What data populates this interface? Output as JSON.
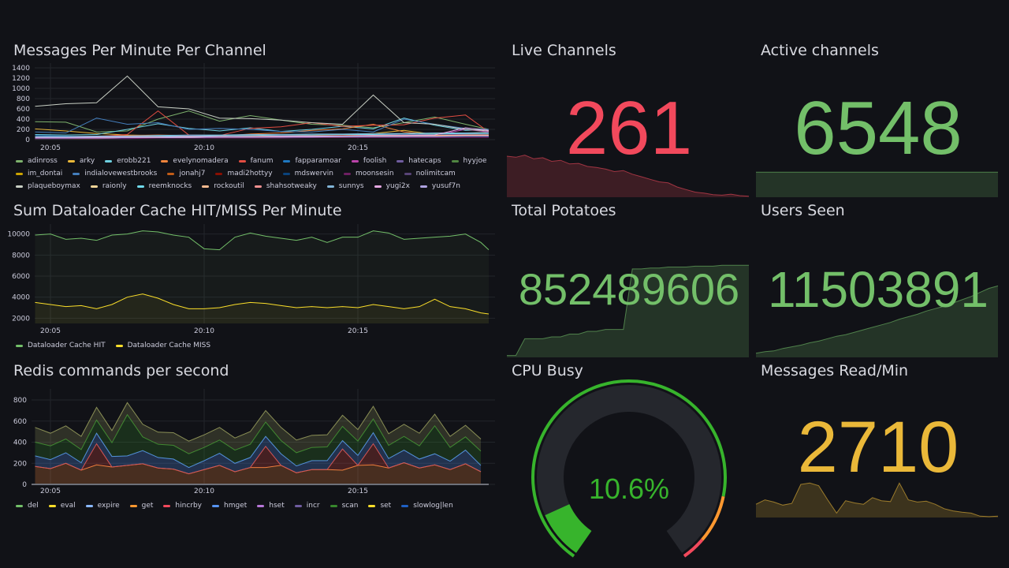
{
  "panels": {
    "messages": {
      "title": "Messages Per Minute Per Channel"
    },
    "dataloader": {
      "title": "Sum Dataloader Cache HIT/MISS Per Minute"
    },
    "redis": {
      "title": "Redis commands per second"
    },
    "live": {
      "title": "Live Channels",
      "value": "261",
      "color": "#f2495c",
      "spark": [
        80,
        78,
        82,
        75,
        77,
        70,
        72,
        65,
        66,
        60,
        58,
        55,
        50,
        52,
        45,
        40,
        35,
        30,
        28,
        20,
        15,
        10,
        8,
        5,
        4,
        6,
        3,
        2
      ]
    },
    "active": {
      "title": "Active channels",
      "value": "6548",
      "color": "#73bf69",
      "spark": [
        99,
        99,
        99,
        99,
        99,
        99,
        99,
        99,
        99,
        99,
        99,
        99,
        99,
        99,
        99,
        99,
        99,
        99,
        99,
        99,
        99,
        99,
        99,
        99,
        99,
        99,
        99,
        99
      ]
    },
    "potatoes": {
      "title": "Total Potatoes",
      "value": "852489606",
      "color": "#73bf69",
      "spark": [
        2,
        2,
        20,
        20,
        20,
        22,
        22,
        25,
        25,
        28,
        28,
        30,
        30,
        30,
        95,
        95,
        96,
        96,
        97,
        97,
        97,
        98,
        98,
        98,
        99,
        99,
        99,
        99
      ]
    },
    "users": {
      "title": "Users Seen",
      "value": "11503891",
      "color": "#73bf69",
      "spark": [
        5,
        7,
        8,
        11,
        13,
        15,
        18,
        20,
        23,
        26,
        28,
        31,
        34,
        37,
        40,
        43,
        47,
        50,
        53,
        57,
        60,
        63,
        67,
        71,
        75,
        80,
        85,
        88
      ]
    },
    "cpu": {
      "title": "CPU Busy",
      "value": "10.6%",
      "percent": 10.6,
      "color": "#37b42c"
    },
    "msgread": {
      "title": "Messages Read/Min",
      "value": "2710",
      "color": "#eab839",
      "spark": [
        30,
        40,
        35,
        28,
        32,
        75,
        78,
        72,
        40,
        10,
        38,
        33,
        30,
        45,
        38,
        36,
        78,
        40,
        35,
        37,
        30,
        20,
        15,
        12,
        10,
        3,
        2,
        3
      ]
    }
  },
  "chart_data": [
    {
      "type": "line",
      "id": "messages",
      "title": "Messages Per Minute Per Channel",
      "ylim": [
        0,
        1400
      ],
      "yticks": [
        0,
        200,
        400,
        600,
        800,
        1000,
        1200,
        1400
      ],
      "xticks": [
        {
          "m": 5,
          "label": "20:05"
        },
        {
          "m": 10,
          "label": "20:10"
        },
        {
          "m": 15,
          "label": "20:15"
        }
      ],
      "x": [
        4.5,
        5.5,
        6.5,
        7.5,
        8.5,
        9.5,
        10.5,
        11.5,
        12.5,
        13.5,
        14.5,
        15.5,
        16.5,
        17.5,
        18.5,
        19.5
      ],
      "series": [
        {
          "name": "adinross",
          "color": "#7eb26d",
          "values": [
            350,
            340,
            150,
            170,
            400,
            560,
            360,
            470,
            380,
            300,
            280,
            230,
            330,
            440,
            300,
            200
          ]
        },
        {
          "name": "arky",
          "color": "#eab839",
          "values": [
            210,
            170,
            120,
            90,
            80,
            70,
            60,
            60,
            60,
            70,
            90,
            120,
            180,
            100,
            120,
            150
          ]
        },
        {
          "name": "erobb221",
          "color": "#6ed0e0",
          "values": [
            100,
            90,
            100,
            200,
            310,
            220,
            170,
            230,
            160,
            200,
            260,
            210,
            420,
            280,
            180,
            200
          ]
        },
        {
          "name": "evelynomadera",
          "color": "#ef843c",
          "values": [
            60,
            60,
            70,
            80,
            90,
            80,
            70,
            110,
            130,
            180,
            210,
            300,
            150,
            90,
            100,
            120
          ]
        },
        {
          "name": "fanum",
          "color": "#e24d42",
          "values": [
            60,
            60,
            60,
            100,
            560,
            90,
            80,
            220,
            250,
            330,
            260,
            280,
            290,
            420,
            480,
            150
          ]
        },
        {
          "name": "fapparamoar",
          "color": "#1f78c1",
          "values": [
            80,
            70,
            60,
            60,
            70,
            60,
            60,
            60,
            60,
            60,
            60,
            60,
            70,
            70,
            80,
            90
          ]
        },
        {
          "name": "foolish",
          "color": "#ba43a9",
          "values": [
            40,
            40,
            40,
            50,
            50,
            50,
            50,
            60,
            60,
            60,
            70,
            80,
            80,
            80,
            200,
            150
          ]
        },
        {
          "name": "hatecaps",
          "color": "#705da0",
          "values": [
            50,
            50,
            60,
            60,
            70,
            60,
            60,
            70,
            70,
            70,
            80,
            90,
            90,
            90,
            100,
            100
          ]
        },
        {
          "name": "hyyjoe",
          "color": "#508642",
          "values": [
            30,
            30,
            30,
            40,
            40,
            50,
            50,
            60,
            60,
            70,
            70,
            80,
            100,
            120,
            110,
            100
          ]
        },
        {
          "name": "im_dontai",
          "color": "#cca300",
          "values": [
            20,
            20,
            20,
            30,
            30,
            30,
            30,
            40,
            40,
            40,
            40,
            50,
            50,
            50,
            60,
            60
          ]
        },
        {
          "name": "indialovewestbrooks",
          "color": "#447ebc",
          "values": [
            150,
            130,
            420,
            300,
            330,
            200,
            220,
            200,
            160,
            150,
            200,
            150,
            400,
            300,
            220,
            200
          ]
        },
        {
          "name": "jonahj7",
          "color": "#c15c17",
          "values": [
            40,
            40,
            50,
            60,
            60,
            60,
            60,
            70,
            70,
            80,
            90,
            100,
            90,
            90,
            80,
            80
          ]
        },
        {
          "name": "madi2hottyy",
          "color": "#890f02",
          "values": [
            30,
            30,
            30,
            30,
            40,
            40,
            40,
            50,
            50,
            50,
            50,
            60,
            60,
            60,
            60,
            60
          ]
        },
        {
          "name": "mdswervin",
          "color": "#0a437c",
          "values": [
            20,
            20,
            30,
            30,
            30,
            30,
            40,
            40,
            40,
            40,
            50,
            50,
            50,
            50,
            50,
            50
          ]
        },
        {
          "name": "moonsesin",
          "color": "#6d1f62",
          "values": [
            20,
            20,
            20,
            20,
            30,
            30,
            30,
            30,
            30,
            40,
            40,
            40,
            40,
            40,
            40,
            40
          ]
        },
        {
          "name": "nolimitcam",
          "color": "#584477",
          "values": [
            60,
            60,
            70,
            70,
            80,
            80,
            80,
            90,
            90,
            90,
            100,
            100,
            100,
            100,
            110,
            110
          ]
        },
        {
          "name": "plaqueboymax",
          "color": "#c8cfc4",
          "values": [
            650,
            700,
            720,
            1240,
            640,
            600,
            420,
            410,
            380,
            330,
            300,
            870,
            330,
            300,
            200,
            170
          ]
        },
        {
          "name": "raionly",
          "color": "#f4d598",
          "values": [
            30,
            30,
            30,
            40,
            40,
            40,
            50,
            50,
            50,
            60,
            60,
            60,
            60,
            70,
            70,
            70
          ]
        },
        {
          "name": "reemknocks",
          "color": "#70dbed",
          "values": [
            50,
            50,
            60,
            60,
            70,
            70,
            80,
            80,
            90,
            90,
            100,
            100,
            110,
            110,
            120,
            120
          ]
        },
        {
          "name": "rockoutil",
          "color": "#f9ba8f",
          "values": [
            40,
            40,
            40,
            50,
            50,
            60,
            60,
            60,
            70,
            70,
            70,
            80,
            80,
            80,
            90,
            90
          ]
        },
        {
          "name": "shahsotweaky",
          "color": "#f29191",
          "values": [
            30,
            30,
            40,
            40,
            40,
            50,
            50,
            50,
            60,
            60,
            60,
            70,
            70,
            70,
            80,
            80
          ]
        },
        {
          "name": "sunnys",
          "color": "#82b5d8",
          "values": [
            60,
            60,
            70,
            70,
            80,
            90,
            90,
            100,
            100,
            110,
            110,
            120,
            120,
            130,
            130,
            140
          ]
        },
        {
          "name": "yugi2x",
          "color": "#e5a8e2",
          "values": [
            40,
            40,
            50,
            50,
            50,
            60,
            60,
            60,
            70,
            70,
            70,
            80,
            80,
            90,
            230,
            180
          ]
        },
        {
          "name": "yusuf7n",
          "color": "#aea2e0",
          "values": [
            30,
            30,
            30,
            40,
            40,
            40,
            50,
            50,
            50,
            50,
            60,
            60,
            60,
            60,
            70,
            70
          ]
        }
      ]
    },
    {
      "type": "line",
      "id": "dataloader",
      "title": "Sum Dataloader Cache HIT/MISS Per Minute",
      "ylim": [
        1500,
        10500
      ],
      "yticks": [
        2000,
        4000,
        6000,
        8000,
        10000
      ],
      "xticks": [
        {
          "m": 5,
          "label": "20:05"
        },
        {
          "m": 10,
          "label": "20:10"
        },
        {
          "m": 15,
          "label": "20:15"
        }
      ],
      "x": [
        4.5,
        5,
        5.5,
        6,
        6.5,
        7,
        7.5,
        8,
        8.5,
        9,
        9.5,
        10,
        10.5,
        11,
        11.5,
        12,
        12.5,
        13,
        13.5,
        14,
        14.5,
        15,
        15.5,
        16,
        16.5,
        17,
        17.5,
        18,
        18.5,
        19,
        19.5
      ],
      "series": [
        {
          "name": "Dataloader Cache HIT",
          "color": "#73bf69",
          "values": [
            9900,
            10000,
            9500,
            9600,
            9400,
            9900,
            10000,
            10300,
            10200,
            9900,
            9700,
            8600,
            8500,
            9700,
            10100,
            9800,
            9600,
            9400,
            9700,
            9200,
            9700,
            9700,
            10300,
            10100,
            9500,
            9600,
            9700,
            9800,
            10000,
            9200,
            8500
          ]
        },
        {
          "name": "Dataloader Cache MISS",
          "color": "#fade2a",
          "values": [
            3500,
            3300,
            3100,
            3200,
            2900,
            3300,
            4000,
            4300,
            3900,
            3300,
            2900,
            2900,
            3000,
            3300,
            3500,
            3400,
            3200,
            3000,
            3100,
            3000,
            3100,
            3000,
            3300,
            3100,
            2900,
            3100,
            3800,
            3100,
            2900,
            2500,
            2400
          ]
        }
      ]
    },
    {
      "type": "area",
      "stacked": true,
      "id": "redis",
      "title": "Redis commands per second",
      "ylim": [
        0,
        860
      ],
      "yticks": [
        0,
        200,
        400,
        600,
        800
      ],
      "xticks": [
        {
          "m": 5,
          "label": "20:05"
        },
        {
          "m": 10,
          "label": "20:10"
        },
        {
          "m": 15,
          "label": "20:15"
        }
      ],
      "x_start": 4.5,
      "x_step": 0.5,
      "series": [
        {
          "name": "get",
          "color": "#ef843c",
          "values": [
            170,
            150,
            200,
            135,
            185,
            165,
            180,
            195,
            155,
            145,
            100,
            140,
            180,
            120,
            160,
            160,
            180,
            110,
            140,
            140,
            135,
            180,
            185,
            155,
            205,
            155,
            185,
            140,
            195,
            120
          ]
        },
        {
          "name": "hincrby",
          "color": "#e24d42",
          "values": [
            0,
            0,
            0,
            0,
            200,
            0,
            0,
            0,
            0,
            0,
            0,
            0,
            0,
            0,
            0,
            200,
            0,
            0,
            0,
            0,
            200,
            0,
            200,
            0,
            0,
            0,
            0,
            0,
            0,
            0
          ]
        },
        {
          "name": "hmget",
          "color": "#5794f2",
          "values": [
            100,
            85,
            100,
            70,
            100,
            100,
            90,
            125,
            100,
            95,
            60,
            85,
            115,
            80,
            95,
            95,
            110,
            65,
            85,
            85,
            80,
            95,
            105,
            90,
            120,
            85,
            105,
            80,
            130,
            60
          ]
        },
        {
          "name": "scan",
          "color": "#37872d",
          "values": [
            130,
            130,
            130,
            125,
            125,
            130,
            390,
            130,
            125,
            130,
            130,
            125,
            125,
            125,
            125,
            135,
            125,
            125,
            125,
            130,
            135,
            135,
            130,
            125,
            130,
            125,
            265,
            130,
            125,
            135
          ]
        },
        {
          "name": "del",
          "color": "#8a8f56",
          "values": [
            140,
            120,
            125,
            125,
            120,
            115,
            115,
            120,
            115,
            120,
            120,
            120,
            120,
            115,
            120,
            110,
            125,
            120,
            115,
            115,
            105,
            110,
            120,
            110,
            115,
            120,
            110,
            105,
            110,
            115
          ]
        }
      ],
      "legend": [
        {
          "name": "del",
          "color": "#73bf69"
        },
        {
          "name": "eval",
          "color": "#fade2a"
        },
        {
          "name": "expire",
          "color": "#8ab8ff"
        },
        {
          "name": "get",
          "color": "#ff9830"
        },
        {
          "name": "hincrby",
          "color": "#f2495c"
        },
        {
          "name": "hmget",
          "color": "#5794f2"
        },
        {
          "name": "hset",
          "color": "#b877d9"
        },
        {
          "name": "incr",
          "color": "#705da0"
        },
        {
          "name": "scan",
          "color": "#37872d"
        },
        {
          "name": "set",
          "color": "#fade2a"
        },
        {
          "name": "slowlog|len",
          "color": "#1f60c4"
        }
      ]
    }
  ]
}
